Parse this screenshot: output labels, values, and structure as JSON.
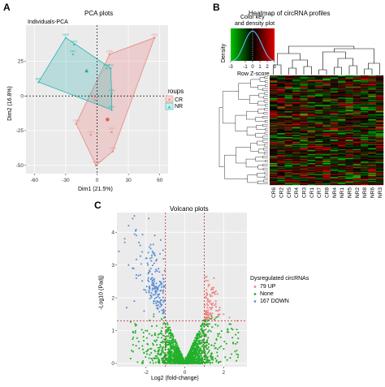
{
  "panels": {
    "a": "A",
    "b": "B",
    "c": "C"
  },
  "pca": {
    "title": "PCA plots",
    "subtitle": "Individuals-PCA",
    "xlabel": "Dim1 (21.5%)",
    "ylabel": "Dim2 (16.8%)",
    "xticks": [
      "-60",
      "-30",
      "0",
      "30",
      "60"
    ],
    "yticks": [
      "25",
      "0",
      "-25",
      "-50"
    ],
    "legend": {
      "title": "Groups",
      "items": [
        {
          "label": "CR",
          "color": "#e8908c"
        },
        {
          "label": "NR",
          "color": "#3bb8b4"
        }
      ]
    }
  },
  "heatmap": {
    "title": "Heatmap of circRNA profiles",
    "key_title_line1": "Color key",
    "key_title_line2": "and density plot",
    "key_ylabel": "Density",
    "key_xlabel": "Row Z-score",
    "key_ticks": [
      "-3",
      "-1",
      "0",
      "1",
      "2",
      "3"
    ],
    "columns": [
      "CR6",
      "CR2",
      "CR5",
      "CR4",
      "CR3",
      "CR1",
      "CR7",
      "CR8",
      "NR4",
      "NR1",
      "NR5",
      "NR2",
      "NR8",
      "NR6",
      "NR3"
    ],
    "colors": {
      "low": "#00c400",
      "mid": "#000000",
      "high": "#e00000"
    }
  },
  "volcano": {
    "title": "Volcano plots",
    "xlabel": "Log2 (fold-change)",
    "ylabel": "-Log10 (Padj)",
    "legend_title": "Dysregulated circRNAs",
    "legend": [
      {
        "label": "79 UP",
        "color": "#f08080"
      },
      {
        "label": "None",
        "color": "#22b02a"
      },
      {
        "label": "167 DOWN",
        "color": "#5b8fd6"
      }
    ]
  },
  "chart_data": [
    {
      "type": "scatter",
      "title": "PCA plots",
      "subtitle": "Individuals-PCA",
      "xlabel": "Dim1 (21.5%)",
      "ylabel": "Dim2 (16.8%)",
      "xlim": [
        -68,
        68
      ],
      "ylim": [
        -56,
        51
      ],
      "series": [
        {
          "name": "CR",
          "color": "#e8908c",
          "labels": [
            "CR4",
            "CR8",
            "CR1",
            "CR5",
            "CR7",
            "CR3",
            "CR6",
            "CR2"
          ],
          "x": [
            55,
            12,
            -2,
            -20,
            14,
            15,
            -1,
            -6
          ],
          "y": [
            42,
            30,
            -3,
            -20,
            -26,
            -40,
            -50,
            -28
          ]
        },
        {
          "name": "NR",
          "color": "#3bb8b4",
          "labels": [
            "NR8",
            "NR5",
            "NR4",
            "NR6",
            "NR1",
            "NR3",
            "NR2",
            "NR7"
          ],
          "x": [
            -30,
            -22,
            9,
            14,
            -56,
            13,
            14,
            -23
          ],
          "y": [
            42,
            37,
            20,
            2,
            10,
            20,
            -10,
            30
          ]
        }
      ],
      "centroids": [
        {
          "name": "CR",
          "x": 10,
          "y": -17
        },
        {
          "name": "NR",
          "x": -10,
          "y": 18
        }
      ],
      "reference_lines": {
        "x": 0,
        "y": 0
      },
      "legend_title": "Groups"
    },
    {
      "type": "heatmap",
      "title": "Heatmap of circRNA profiles",
      "columns": [
        "CR6",
        "CR2",
        "CR5",
        "CR4",
        "CR3",
        "CR1",
        "CR7",
        "CR8",
        "NR4",
        "NR1",
        "NR5",
        "NR2",
        "NR8",
        "NR6",
        "NR3"
      ],
      "color_scale": {
        "label": "Row Z-score",
        "min": -3,
        "max": 3,
        "low": "#00c400",
        "mid": "#000000",
        "high": "#e00000"
      },
      "rows": 110
    },
    {
      "type": "scatter",
      "title": "Volcano plots",
      "xlabel": "Log2 (fold-change)",
      "ylabel": "-Log10 (Padj)",
      "xlim": [
        -3.5,
        3.2
      ],
      "ylim": [
        -0.1,
        4.6
      ],
      "xticks": [
        -2,
        0,
        2
      ],
      "yticks": [
        0,
        1,
        2,
        3,
        4
      ],
      "thresholds": {
        "log2fc": [
          -1,
          1
        ],
        "neglog10padj": 1.3
      },
      "series": [
        {
          "name": "UP",
          "count": 79,
          "color": "#f08080",
          "points": [
            [
              1.05,
              1.4
            ],
            [
              1.1,
              1.6
            ],
            [
              1.2,
              1.9
            ],
            [
              1.3,
              2.1
            ],
            [
              1.4,
              2.3
            ],
            [
              1.5,
              2.6
            ],
            [
              1.6,
              2.2
            ],
            [
              1.2,
              1.5
            ],
            [
              1.8,
              1.7
            ],
            [
              2.0,
              1.5
            ],
            [
              2.3,
              1.4
            ],
            [
              2.7,
              1.3
            ],
            [
              1.1,
              2.0
            ],
            [
              1.3,
              1.5
            ],
            [
              1.6,
              1.9
            ],
            [
              1.25,
              2.4
            ]
          ]
        },
        {
          "name": "None",
          "color": "#22b02a",
          "points": [
            [
              0,
              0.05
            ],
            [
              0.2,
              0.2
            ],
            [
              -0.2,
              0.25
            ],
            [
              0.4,
              0.5
            ],
            [
              -0.4,
              0.5
            ],
            [
              0.6,
              0.8
            ],
            [
              -0.6,
              0.8
            ],
            [
              0.8,
              1.1
            ],
            [
              -0.8,
              1.1
            ],
            [
              0.9,
              1.25
            ],
            [
              -0.9,
              1.25
            ],
            [
              1.2,
              0.6
            ],
            [
              -1.3,
              0.7
            ],
            [
              1.5,
              0.4
            ],
            [
              -1.6,
              0.5
            ],
            [
              2.0,
              0.3
            ],
            [
              -2.1,
              0.6
            ],
            [
              2.5,
              0.5
            ],
            [
              -2.6,
              0.4
            ]
          ]
        },
        {
          "name": "DOWN",
          "count": 167,
          "color": "#5b8fd6",
          "points": [
            [
              -2.6,
              4.5
            ],
            [
              -2.9,
              4.2
            ],
            [
              -3.1,
              3.8
            ],
            [
              -2.5,
              3.9
            ],
            [
              -2.3,
              3.6
            ],
            [
              -2.2,
              3.4
            ],
            [
              -2.0,
              3.2
            ],
            [
              -1.9,
              3.0
            ],
            [
              -1.8,
              2.8
            ],
            [
              -1.7,
              2.6
            ],
            [
              -1.6,
              2.4
            ],
            [
              -1.5,
              2.3
            ],
            [
              -1.4,
              2.1
            ],
            [
              -1.3,
              2.0
            ],
            [
              -1.2,
              1.8
            ],
            [
              -1.1,
              1.6
            ],
            [
              -1.05,
              1.4
            ],
            [
              -2.7,
              2.9
            ],
            [
              -2.9,
              3.0
            ],
            [
              -2.5,
              2.6
            ],
            [
              -2.6,
              1.9
            ],
            [
              -3.0,
              1.7
            ],
            [
              -1.6,
              1.5
            ],
            [
              -2.1,
              1.6
            ]
          ]
        }
      ],
      "legend_title": "Dysregulated circRNAs"
    }
  ]
}
